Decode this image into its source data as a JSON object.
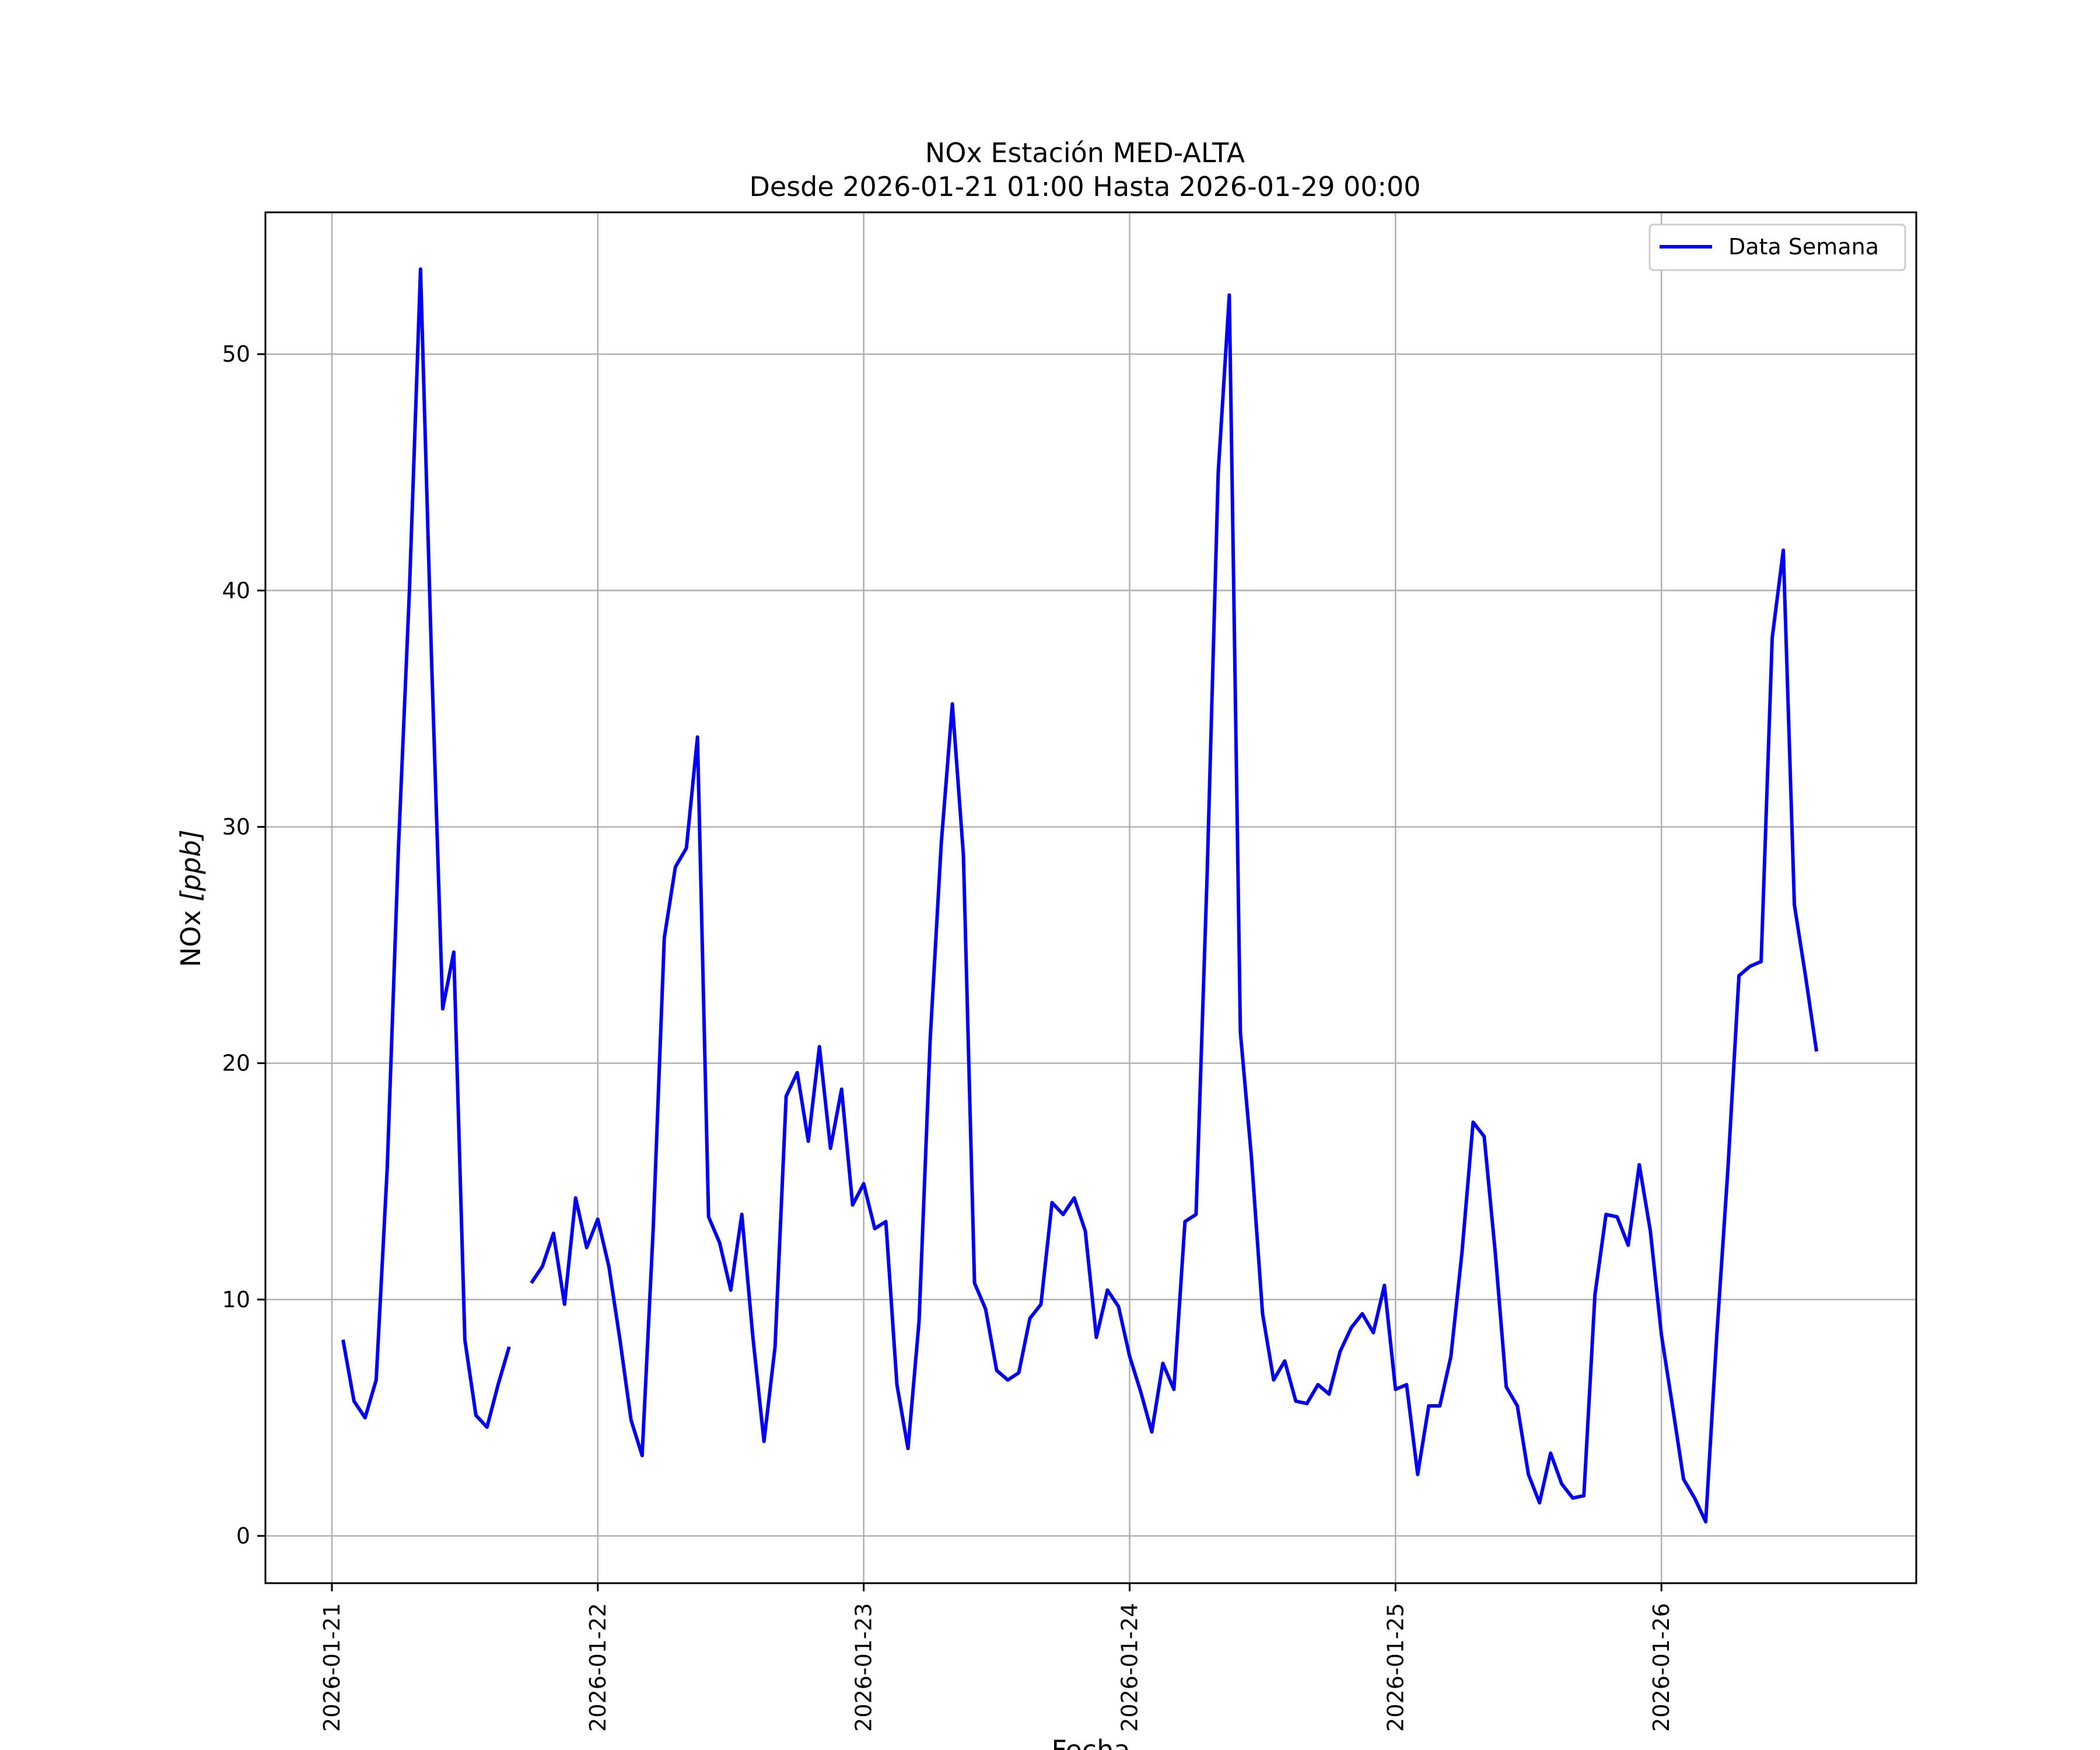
{
  "chart_data": {
    "type": "line",
    "title": "NOx Estación MED-ALTA",
    "subtitle": "Desde 2026-01-21 01:00 Hasta 2026-01-29 00:00",
    "xlabel": "Fecha",
    "ylabel_main": "NOx ",
    "ylabel_unit": "[ppb]",
    "grid": true,
    "legend_position": "top-right",
    "xlim": [
      "2026-01-20 18:00",
      "2026-01-26 23:00"
    ],
    "ylim": [
      -2,
      56
    ],
    "x_ticks": [
      "2026-01-21",
      "2026-01-22",
      "2026-01-23",
      "2026-01-24",
      "2026-01-25",
      "2026-01-26"
    ],
    "y_ticks": [
      0,
      10,
      20,
      30,
      40,
      50
    ],
    "series": [
      {
        "name": "Data Semana",
        "color": "#0000ff",
        "points": [
          [
            "2026-01-21 01:00",
            8.3
          ],
          [
            "2026-01-21 02:00",
            5.7
          ],
          [
            "2026-01-21 03:00",
            5.0
          ],
          [
            "2026-01-21 04:00",
            6.6
          ],
          [
            "2026-01-21 05:00",
            15.6
          ],
          [
            "2026-01-21 06:00",
            29.0
          ],
          [
            "2026-01-21 07:00",
            40.0
          ],
          [
            "2026-01-21 08:00",
            53.6
          ],
          [
            "2026-01-21 09:00",
            37.0
          ],
          [
            "2026-01-21 10:00",
            22.3
          ],
          [
            "2026-01-21 11:00",
            24.7
          ],
          [
            "2026-01-21 12:00",
            8.3
          ],
          [
            "2026-01-21 13:00",
            5.1
          ],
          [
            "2026-01-21 14:00",
            4.6
          ],
          [
            "2026-01-21 15:00",
            6.4
          ],
          [
            "2026-01-21 16:00",
            8.0
          ],
          [
            "2026-01-21 17:00",
            null
          ],
          [
            "2026-01-21 18:00",
            10.7
          ],
          [
            "2026-01-21 19:00",
            11.4
          ],
          [
            "2026-01-21 20:00",
            12.8
          ],
          [
            "2026-01-21 21:00",
            9.8
          ],
          [
            "2026-01-21 22:00",
            14.3
          ],
          [
            "2026-01-21 23:00",
            12.2
          ],
          [
            "2026-01-22 00:00",
            13.4
          ],
          [
            "2026-01-22 01:00",
            11.4
          ],
          [
            "2026-01-22 02:00",
            8.3
          ],
          [
            "2026-01-22 03:00",
            4.9
          ],
          [
            "2026-01-22 04:00",
            3.4
          ],
          [
            "2026-01-22 05:00",
            13.0
          ],
          [
            "2026-01-22 06:00",
            25.3
          ],
          [
            "2026-01-22 07:00",
            28.3
          ],
          [
            "2026-01-22 08:00",
            29.1
          ],
          [
            "2026-01-22 09:00",
            33.8
          ],
          [
            "2026-01-22 10:00",
            13.5
          ],
          [
            "2026-01-22 11:00",
            12.4
          ],
          [
            "2026-01-22 12:00",
            10.4
          ],
          [
            "2026-01-22 13:00",
            13.6
          ],
          [
            "2026-01-22 14:00",
            8.4
          ],
          [
            "2026-01-22 15:00",
            4.0
          ],
          [
            "2026-01-22 16:00",
            8.0
          ],
          [
            "2026-01-22 17:00",
            18.6
          ],
          [
            "2026-01-22 18:00",
            19.6
          ],
          [
            "2026-01-22 19:00",
            16.7
          ],
          [
            "2026-01-22 20:00",
            20.7
          ],
          [
            "2026-01-22 21:00",
            16.4
          ],
          [
            "2026-01-22 22:00",
            18.9
          ],
          [
            "2026-01-22 23:00",
            14.0
          ],
          [
            "2026-01-23 00:00",
            14.9
          ],
          [
            "2026-01-23 01:00",
            13.0
          ],
          [
            "2026-01-23 02:00",
            13.3
          ],
          [
            "2026-01-23 03:00",
            6.4
          ],
          [
            "2026-01-23 04:00",
            3.7
          ],
          [
            "2026-01-23 05:00",
            9.1
          ],
          [
            "2026-01-23 06:00",
            21.0
          ],
          [
            "2026-01-23 07:00",
            29.3
          ],
          [
            "2026-01-23 08:00",
            35.2
          ],
          [
            "2026-01-23 09:00",
            28.8
          ],
          [
            "2026-01-23 10:00",
            10.7
          ],
          [
            "2026-01-23 11:00",
            9.6
          ],
          [
            "2026-01-23 12:00",
            7.0
          ],
          [
            "2026-01-23 13:00",
            6.6
          ],
          [
            "2026-01-23 14:00",
            6.9
          ],
          [
            "2026-01-23 15:00",
            9.2
          ],
          [
            "2026-01-23 16:00",
            9.8
          ],
          [
            "2026-01-23 17:00",
            14.1
          ],
          [
            "2026-01-23 18:00",
            13.6
          ],
          [
            "2026-01-23 19:00",
            14.3
          ],
          [
            "2026-01-23 20:00",
            12.9
          ],
          [
            "2026-01-23 21:00",
            8.4
          ],
          [
            "2026-01-23 22:00",
            10.4
          ],
          [
            "2026-01-23 23:00",
            9.7
          ],
          [
            "2026-01-24 00:00",
            7.6
          ],
          [
            "2026-01-24 01:00",
            6.1
          ],
          [
            "2026-01-24 02:00",
            4.4
          ],
          [
            "2026-01-24 03:00",
            7.3
          ],
          [
            "2026-01-24 04:00",
            6.2
          ],
          [
            "2026-01-24 05:00",
            13.3
          ],
          [
            "2026-01-24 06:00",
            13.6
          ],
          [
            "2026-01-24 07:00",
            28.0
          ],
          [
            "2026-01-24 08:00",
            45.0
          ],
          [
            "2026-01-24 09:00",
            52.5
          ],
          [
            "2026-01-24 10:00",
            21.3
          ],
          [
            "2026-01-24 11:00",
            16.0
          ],
          [
            "2026-01-24 12:00",
            9.4
          ],
          [
            "2026-01-24 13:00",
            6.6
          ],
          [
            "2026-01-24 14:00",
            7.4
          ],
          [
            "2026-01-24 15:00",
            5.7
          ],
          [
            "2026-01-24 16:00",
            5.6
          ],
          [
            "2026-01-24 17:00",
            6.4
          ],
          [
            "2026-01-24 18:00",
            6.0
          ],
          [
            "2026-01-24 19:00",
            7.8
          ],
          [
            "2026-01-24 20:00",
            8.8
          ],
          [
            "2026-01-24 21:00",
            9.4
          ],
          [
            "2026-01-24 22:00",
            8.6
          ],
          [
            "2026-01-24 23:00",
            10.6
          ],
          [
            "2026-01-25 00:00",
            6.2
          ],
          [
            "2026-01-25 01:00",
            6.4
          ],
          [
            "2026-01-25 02:00",
            2.6
          ],
          [
            "2026-01-25 03:00",
            5.5
          ],
          [
            "2026-01-25 04:00",
            5.5
          ],
          [
            "2026-01-25 05:00",
            7.6
          ],
          [
            "2026-01-25 06:00",
            12.0
          ],
          [
            "2026-01-25 07:00",
            17.5
          ],
          [
            "2026-01-25 08:00",
            16.9
          ],
          [
            "2026-01-25 09:00",
            12.0
          ],
          [
            "2026-01-25 10:00",
            6.3
          ],
          [
            "2026-01-25 11:00",
            5.5
          ],
          [
            "2026-01-25 12:00",
            2.6
          ],
          [
            "2026-01-25 13:00",
            1.4
          ],
          [
            "2026-01-25 14:00",
            3.5
          ],
          [
            "2026-01-25 15:00",
            2.2
          ],
          [
            "2026-01-25 16:00",
            1.6
          ],
          [
            "2026-01-25 17:00",
            1.7
          ],
          [
            "2026-01-25 18:00",
            10.2
          ],
          [
            "2026-01-25 19:00",
            13.6
          ],
          [
            "2026-01-25 20:00",
            13.5
          ],
          [
            "2026-01-25 21:00",
            12.3
          ],
          [
            "2026-01-25 22:00",
            15.7
          ],
          [
            "2026-01-25 23:00",
            12.9
          ],
          [
            "2026-01-26 00:00",
            8.5
          ],
          [
            "2026-01-26 01:00",
            5.5
          ],
          [
            "2026-01-26 02:00",
            2.4
          ],
          [
            "2026-01-26 03:00",
            1.6
          ],
          [
            "2026-01-26 04:00",
            0.6
          ],
          [
            "2026-01-26 05:00",
            8.5
          ],
          [
            "2026-01-26 06:00",
            15.5
          ],
          [
            "2026-01-26 07:00",
            23.7
          ],
          [
            "2026-01-26 08:00",
            24.1
          ],
          [
            "2026-01-26 09:00",
            24.3
          ],
          [
            "2026-01-26 10:00",
            38.0
          ],
          [
            "2026-01-26 11:00",
            41.7
          ],
          [
            "2026-01-26 12:00",
            26.7
          ],
          [
            "2026-01-26 13:00",
            23.7
          ],
          [
            "2026-01-26 14:00",
            20.5
          ]
        ]
      }
    ]
  }
}
